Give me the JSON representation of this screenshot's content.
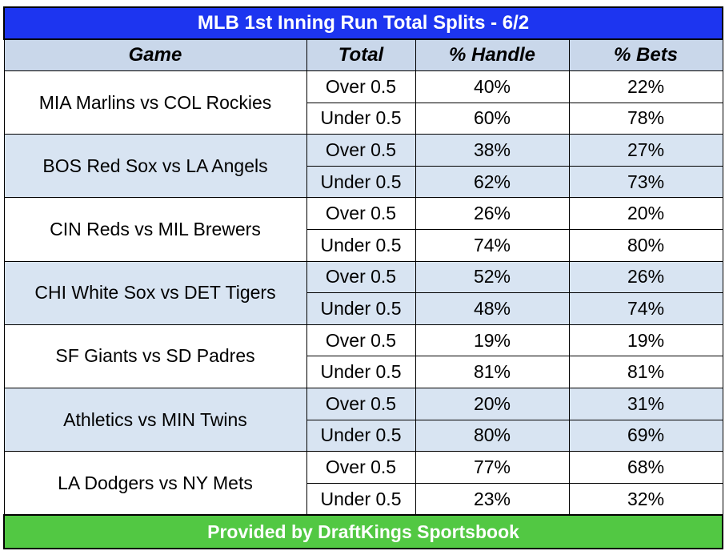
{
  "chart_data": {
    "type": "table",
    "title": "MLB 1st Inning Run Total Splits - 6/2",
    "columns": [
      "Game",
      "Total",
      "% Handle",
      "% Bets"
    ],
    "games": [
      {
        "game": "MIA Marlins vs COL Rockies",
        "rows": [
          {
            "total": "Over 0.5",
            "handle": "40%",
            "bets": "22%"
          },
          {
            "total": "Under 0.5",
            "handle": "60%",
            "bets": "78%"
          }
        ]
      },
      {
        "game": "BOS Red Sox vs LA Angels",
        "rows": [
          {
            "total": "Over 0.5",
            "handle": "38%",
            "bets": "27%"
          },
          {
            "total": "Under 0.5",
            "handle": "62%",
            "bets": "73%"
          }
        ]
      },
      {
        "game": "CIN Reds vs MIL Brewers",
        "rows": [
          {
            "total": "Over 0.5",
            "handle": "26%",
            "bets": "20%"
          },
          {
            "total": "Under 0.5",
            "handle": "74%",
            "bets": "80%"
          }
        ]
      },
      {
        "game": "CHI White Sox vs DET Tigers",
        "rows": [
          {
            "total": "Over 0.5",
            "handle": "52%",
            "bets": "26%"
          },
          {
            "total": "Under 0.5",
            "handle": "48%",
            "bets": "74%"
          }
        ]
      },
      {
        "game": "SF Giants vs SD Padres",
        "rows": [
          {
            "total": "Over 0.5",
            "handle": "19%",
            "bets": "19%"
          },
          {
            "total": "Under 0.5",
            "handle": "81%",
            "bets": "81%"
          }
        ]
      },
      {
        "game": "Athletics vs MIN Twins",
        "rows": [
          {
            "total": "Over 0.5",
            "handle": "20%",
            "bets": "31%"
          },
          {
            "total": "Under 0.5",
            "handle": "80%",
            "bets": "69%"
          }
        ]
      },
      {
        "game": "LA Dodgers vs NY Mets",
        "rows": [
          {
            "total": "Over 0.5",
            "handle": "77%",
            "bets": "68%"
          },
          {
            "total": "Under 0.5",
            "handle": "23%",
            "bets": "32%"
          }
        ]
      }
    ],
    "footer": "Provided by DraftKings Sportsbook"
  },
  "colors": {
    "title_bg": "#1d35f0",
    "header_bg": "#c9d7ea",
    "shaded_row_bg": "#d8e4f2",
    "footer_bg": "#52c843"
  }
}
